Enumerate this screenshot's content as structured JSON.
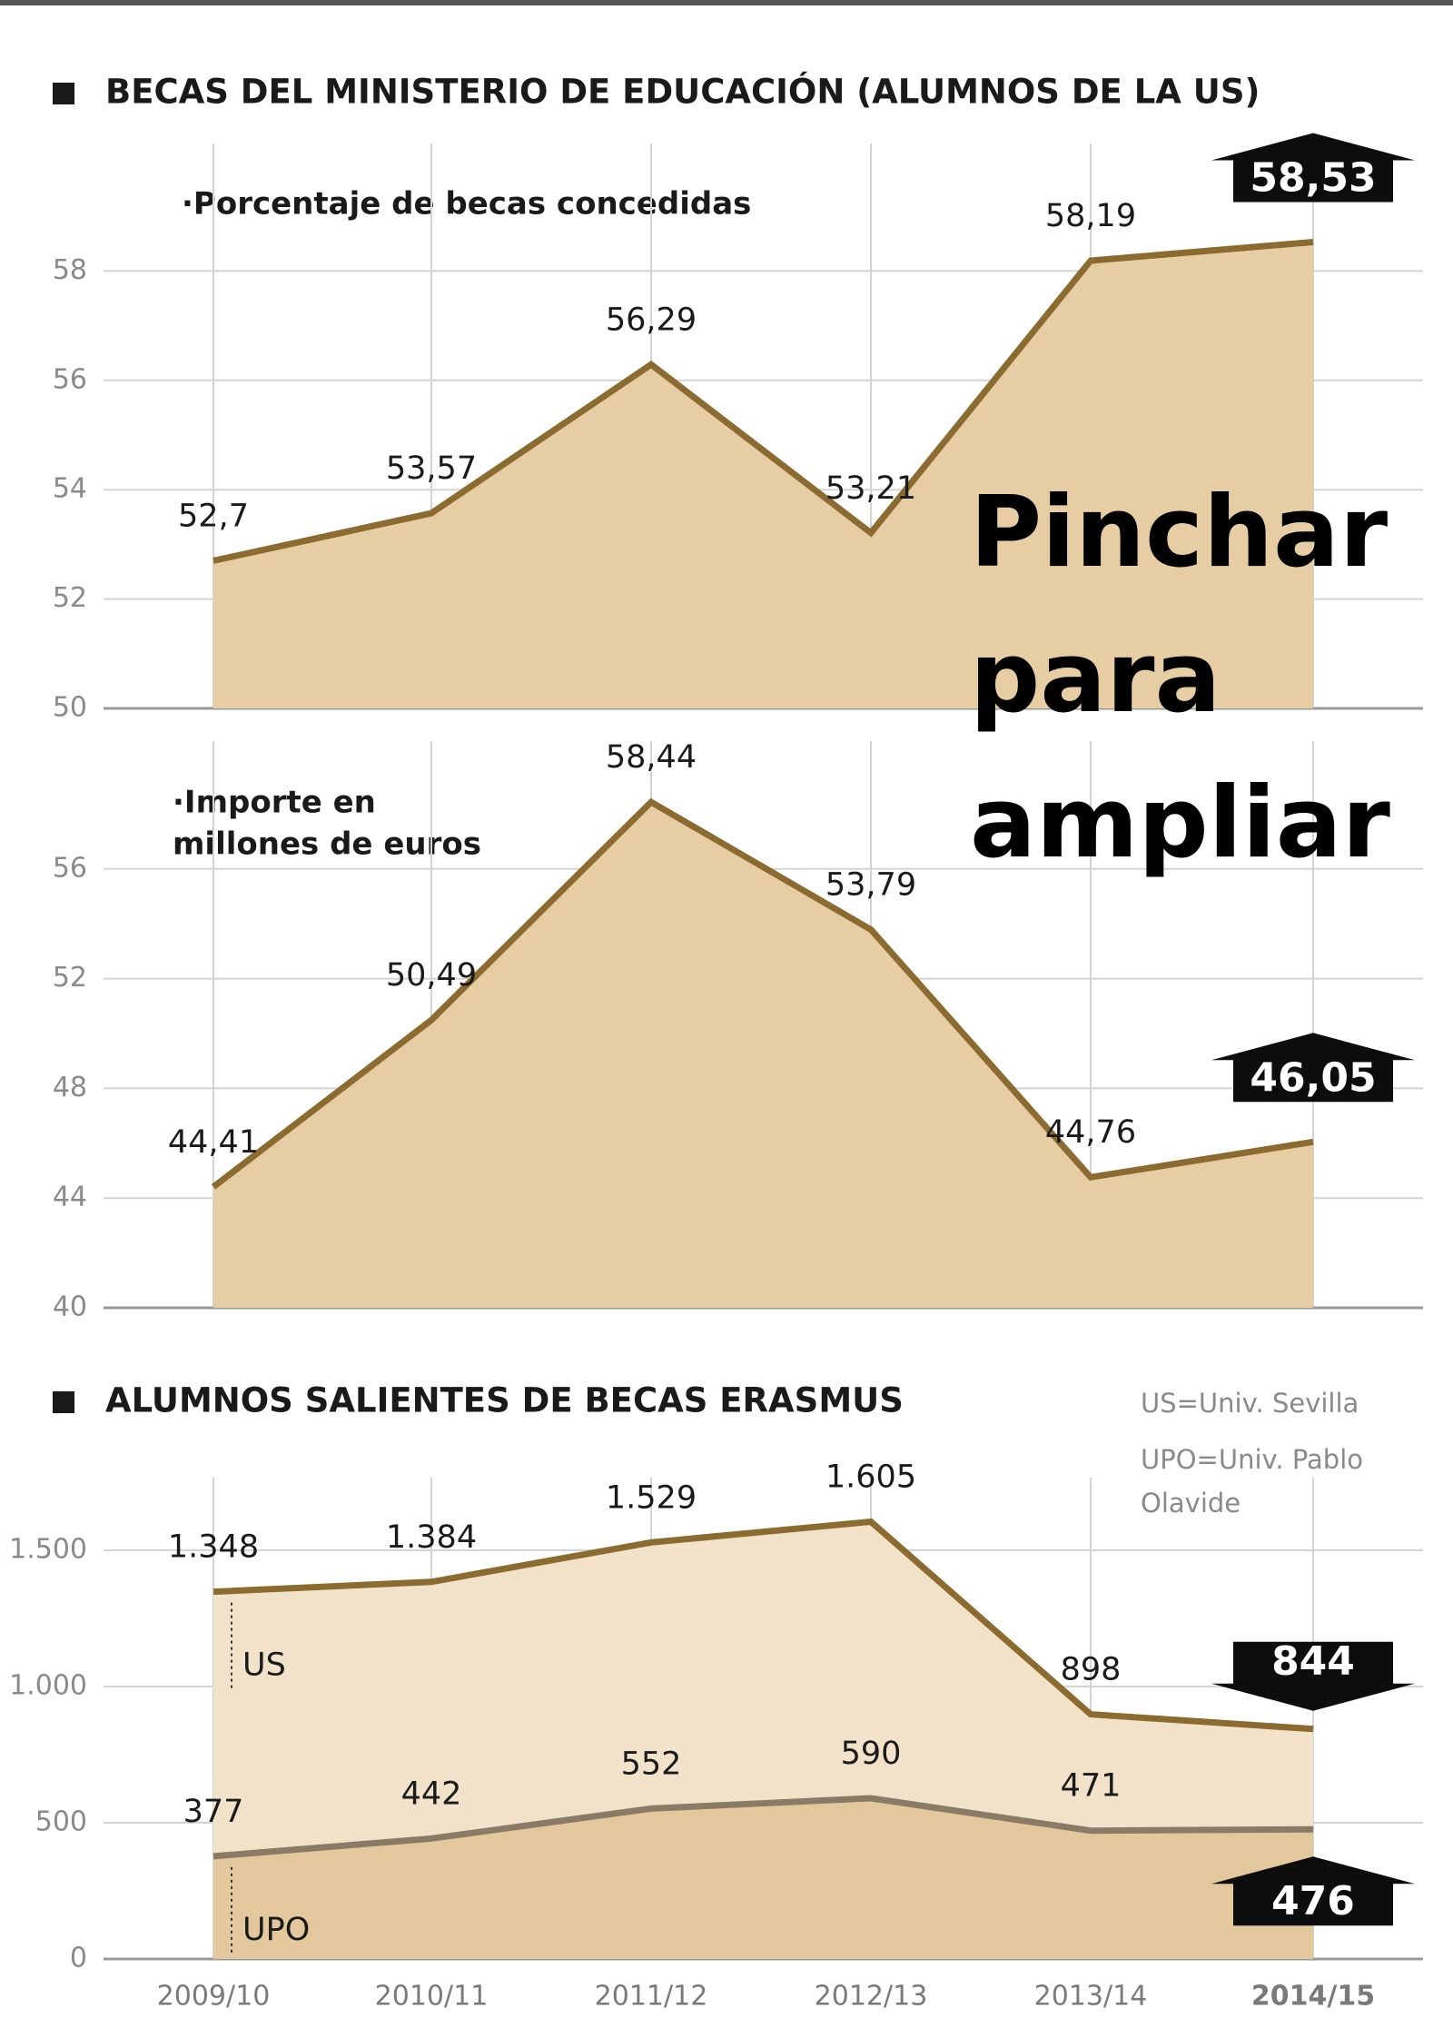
{
  "chart_data": [
    {
      "type": "area",
      "title": "BECAS DEL MINISTERIO DE EDUCACIÓN (ALUMNOS DE LA US)",
      "subtitle": [
        "·Porcentaje de becas concedidas"
      ],
      "series": [
        {
          "color": "#8c6b30",
          "fill": "#e6cda4",
          "values": [
            52.7,
            53.57,
            56.29,
            53.21,
            58.19,
            58.53
          ],
          "value_labels": [
            "52,7",
            "53,57",
            "56,29",
            "53,21",
            "58,19",
            "58,53"
          ]
        }
      ],
      "ylim": [
        50,
        60
      ],
      "yticks": [
        50,
        52,
        54,
        56,
        58
      ],
      "grid": true
    },
    {
      "type": "area",
      "subtitle": [
        "·Importe en",
        "millones de euros"
      ],
      "series": [
        {
          "color": "#8c6b30",
          "fill": "#e6cda4",
          "values": [
            44.41,
            50.49,
            58.44,
            53.79,
            44.76,
            46.05
          ],
          "value_labels": [
            "44,41",
            "50,49",
            "58,44",
            "53,79",
            "44,76",
            "46,05"
          ]
        }
      ],
      "ylim": [
        40,
        60
      ],
      "yticks": [
        40,
        44,
        48,
        52,
        56
      ],
      "grid": true
    },
    {
      "type": "area",
      "title": "ALUMNOS SALIENTES DE BECAS ERASMUS",
      "notes": [
        "US=Univ. Sevilla",
        "UPO=Univ. Pablo",
        "Olavide"
      ],
      "categories": [
        "2009/10",
        "2010/11",
        "2011/12",
        "2012/13",
        "2013/14",
        "2014/15"
      ],
      "series": [
        {
          "name": "US",
          "color": "#8c6b30",
          "fill": "#f2e2ca",
          "values": [
            1348,
            1384,
            1529,
            1605,
            898,
            844
          ],
          "value_labels": [
            "1.348",
            "1.384",
            "1.529",
            "1.605",
            "898",
            "844"
          ]
        },
        {
          "name": "UPO",
          "color": "#8a7b66",
          "fill": "#e3c89e",
          "values": [
            377,
            442,
            552,
            590,
            471,
            476
          ]
        }
      ],
      "ylim": [
        0,
        1700
      ],
      "yticks": [
        0,
        500,
        {
          "value": 1000,
          "label": "1.000"
        },
        {
          "value": 1500,
          "label": "1.500"
        }
      ],
      "grid": true
    }
  ],
  "overlay_text": [
    "Pinchar",
    "para",
    "ampliar"
  ]
}
